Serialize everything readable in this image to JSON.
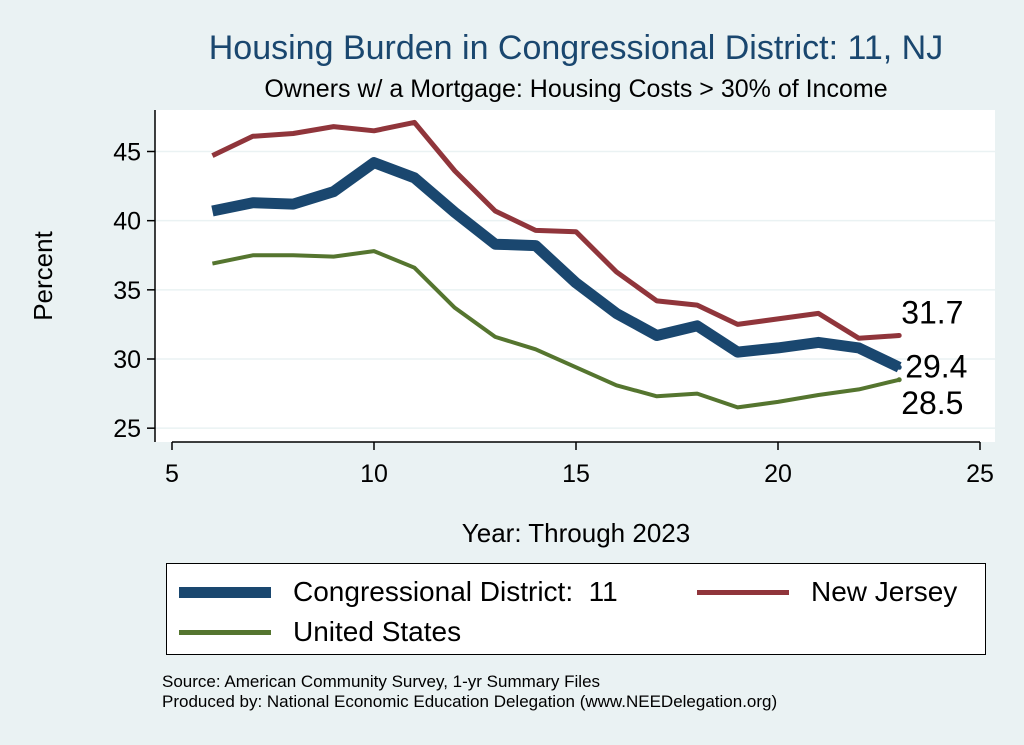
{
  "chart_data": {
    "type": "line",
    "title": "Housing Burden in Congressional District:  11, NJ",
    "subtitle": "Owners w/ a Mortgage: Housing Costs > 30% of Income",
    "xlabel": "Year: Through 2023",
    "ylabel": "Percent",
    "xlim": [
      5,
      25
    ],
    "ylim": [
      24,
      48
    ],
    "xticks": [
      5,
      10,
      15,
      20,
      25
    ],
    "yticks": [
      25,
      30,
      35,
      40,
      45
    ],
    "grid": true,
    "x": [
      6,
      7,
      8,
      9,
      10,
      11,
      12,
      13,
      14,
      15,
      16,
      17,
      18,
      19,
      20,
      21,
      22,
      23
    ],
    "series": [
      {
        "name": "Congressional District:  11",
        "color": "#1a476f",
        "values": [
          40.7,
          41.3,
          41.2,
          42.1,
          44.2,
          43.1,
          40.6,
          38.3,
          38.2,
          35.5,
          33.3,
          31.7,
          32.4,
          30.5,
          30.8,
          31.2,
          30.8,
          29.4
        ],
        "end_label": "29.4"
      },
      {
        "name": "New Jersey",
        "color": "#90353b",
        "values": [
          44.7,
          46.1,
          46.3,
          46.8,
          46.5,
          47.1,
          43.6,
          40.7,
          39.3,
          39.2,
          36.3,
          34.2,
          33.9,
          32.5,
          32.9,
          33.3,
          31.5,
          31.7
        ],
        "end_label": "31.7"
      },
      {
        "name": "United States",
        "color": "#55752f",
        "values": [
          36.9,
          37.5,
          37.5,
          37.4,
          37.8,
          36.6,
          33.7,
          31.6,
          30.7,
          29.4,
          28.1,
          27.3,
          27.5,
          26.5,
          26.9,
          27.4,
          27.8,
          28.5
        ],
        "end_label": "28.5"
      }
    ]
  },
  "legend": {
    "items": [
      {
        "label": "Congressional District:  11",
        "color": "#1a476f"
      },
      {
        "label": "New Jersey",
        "color": "#90353b"
      },
      {
        "label": "United States",
        "color": "#55752f"
      }
    ]
  },
  "footer": {
    "source": "Source: American Community Survey, 1-yr Summary Files",
    "produced": "Produced by: National Economic Education Delegation (www.NEEDelegation.org)"
  }
}
